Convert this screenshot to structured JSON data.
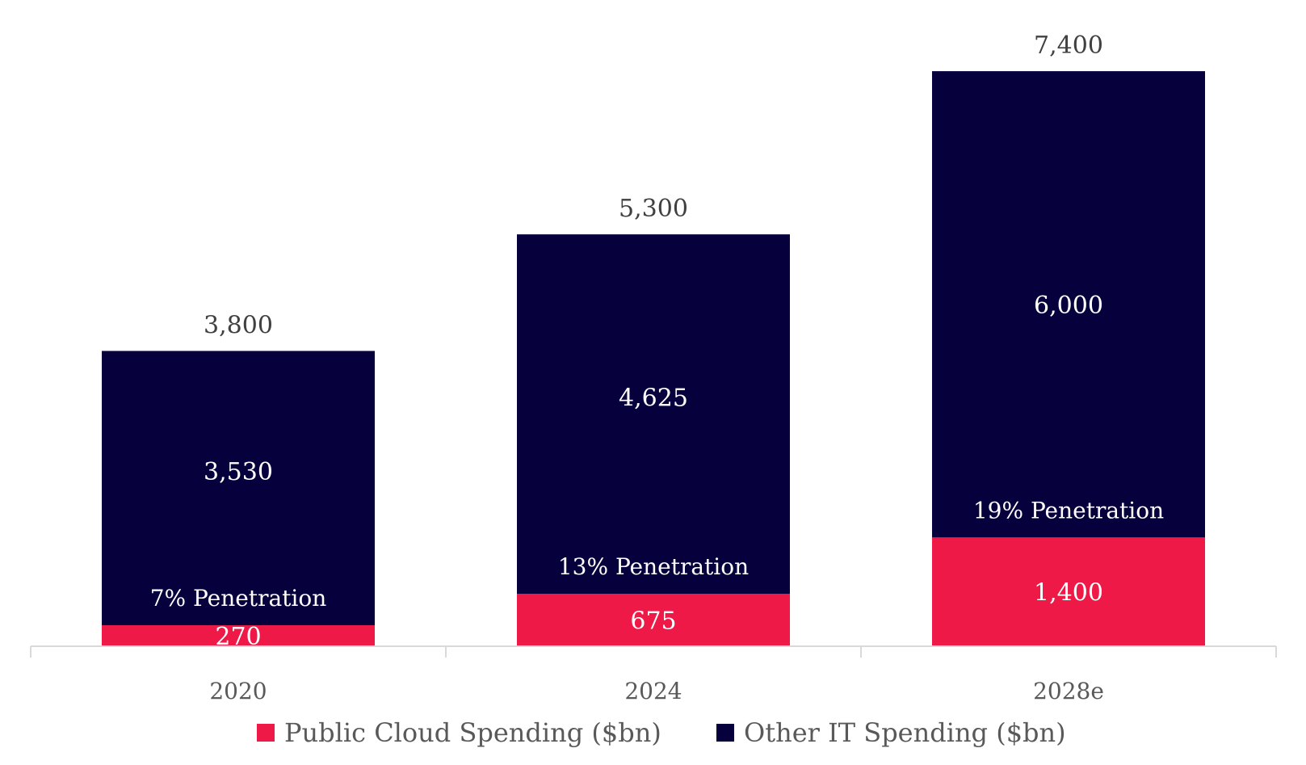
{
  "chart_data": {
    "type": "bar",
    "stacked": true,
    "categories": [
      "2020",
      "2024",
      "2028e"
    ],
    "series": [
      {
        "name": "Public Cloud Spending ($bn)",
        "color": "#EE1946",
        "values": [
          270,
          675,
          1400
        ],
        "labels": [
          "270",
          "675",
          "1,400"
        ]
      },
      {
        "name": "Other IT Spending ($bn)",
        "color": "#06003C",
        "values": [
          3530,
          4625,
          6000
        ],
        "labels": [
          "3,530",
          "4,625",
          "6,000"
        ]
      }
    ],
    "totals": [
      3800,
      5300,
      7400
    ],
    "total_labels": [
      "3,800",
      "5,300",
      "7,400"
    ],
    "annotations": [
      "7% Penetration",
      "13% Penetration",
      "19% Penetration"
    ],
    "ylim": [
      0,
      7900
    ],
    "grid": false,
    "legend_position": "bottom",
    "title": "",
    "xlabel": "",
    "ylabel": ""
  }
}
